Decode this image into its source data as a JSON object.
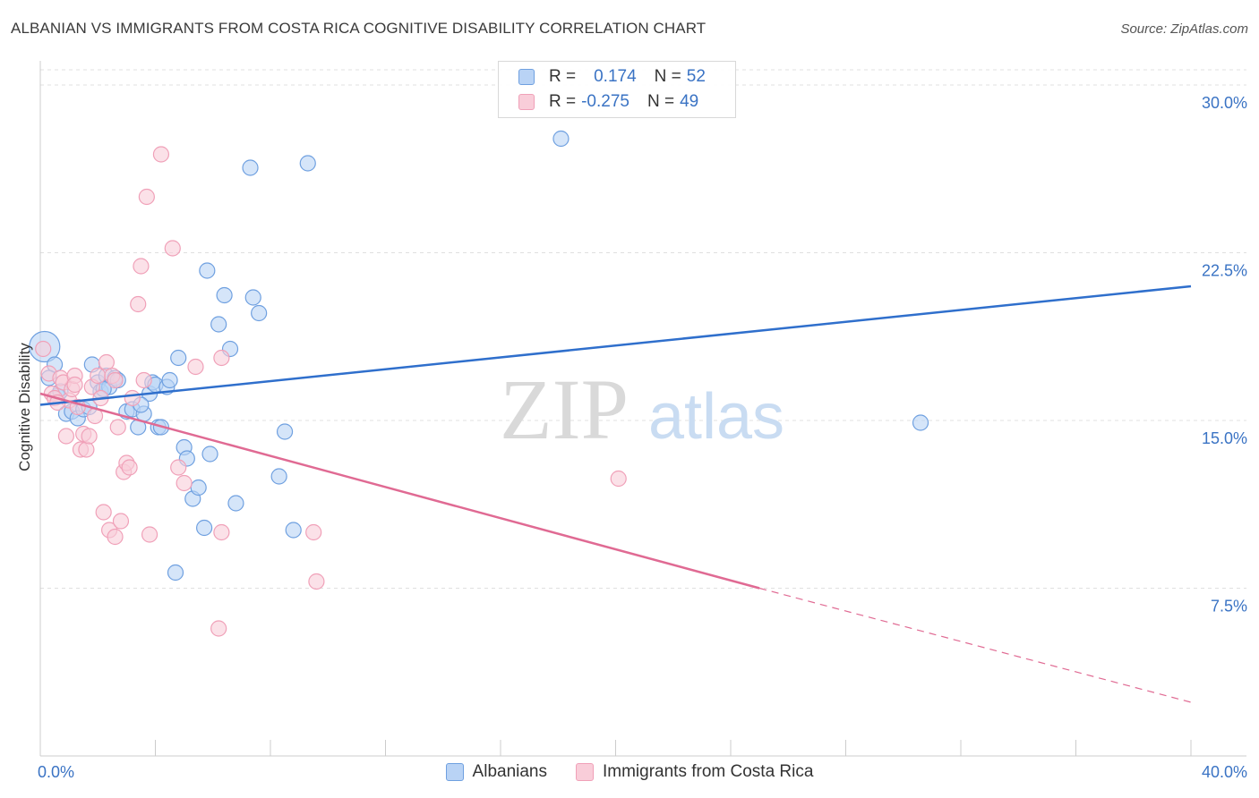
{
  "chart_data": {
    "type": "scatter",
    "title": "ALBANIAN VS IMMIGRANTS FROM COSTA RICA COGNITIVE DISABILITY CORRELATION CHART",
    "source": "Source: ZipAtlas.com",
    "ylabel": "Cognitive Disability",
    "xlim": [
      0,
      40
    ],
    "ylim": [
      0,
      31
    ],
    "x_tick_labels": [
      "0.0%",
      "40.0%"
    ],
    "y_ticks": [
      7.5,
      15.0,
      22.5,
      30.0
    ],
    "y_tick_labels": [
      "7.5%",
      "15.0%",
      "22.5%",
      "30.0%"
    ],
    "watermark": {
      "zip": "ZIP",
      "atlas": "atlas"
    },
    "legend": {
      "r_label": "R =",
      "n_label": "N =",
      "entries": [
        {
          "r": "0.174",
          "n": "52"
        },
        {
          "r": "-0.275",
          "n": "49"
        }
      ]
    },
    "series": [
      {
        "name": "Albanians",
        "color": "#6fa0e0",
        "fill": "#b9d3f5",
        "line_color": "#2f6fcc",
        "trend": {
          "x0": 0,
          "y0": 15.7,
          "x1": 40,
          "y1": 21.0
        },
        "points": [
          [
            0.15,
            18.3
          ],
          [
            0.5,
            17.5
          ],
          [
            0.6,
            16.1
          ],
          [
            0.7,
            16.3
          ],
          [
            0.9,
            15.3
          ],
          [
            1.1,
            15.4
          ],
          [
            1.3,
            15.1
          ],
          [
            1.5,
            15.5
          ],
          [
            1.8,
            17.5
          ],
          [
            2.0,
            16.7
          ],
          [
            2.1,
            16.3
          ],
          [
            2.3,
            17.0
          ],
          [
            2.4,
            16.5
          ],
          [
            2.6,
            16.9
          ],
          [
            2.7,
            16.8
          ],
          [
            3.0,
            15.4
          ],
          [
            3.2,
            15.5
          ],
          [
            3.4,
            14.7
          ],
          [
            3.6,
            15.3
          ],
          [
            3.8,
            16.2
          ],
          [
            3.9,
            16.7
          ],
          [
            4.0,
            16.6
          ],
          [
            4.1,
            14.7
          ],
          [
            4.2,
            14.7
          ],
          [
            4.4,
            16.5
          ],
          [
            4.5,
            16.8
          ],
          [
            4.8,
            17.8
          ],
          [
            5.0,
            13.8
          ],
          [
            5.1,
            13.3
          ],
          [
            5.3,
            11.5
          ],
          [
            5.5,
            12.0
          ],
          [
            5.7,
            10.2
          ],
          [
            5.8,
            21.7
          ],
          [
            5.9,
            13.5
          ],
          [
            6.2,
            19.3
          ],
          [
            6.4,
            20.6
          ],
          [
            6.6,
            18.2
          ],
          [
            6.8,
            11.3
          ],
          [
            7.3,
            26.3
          ],
          [
            7.4,
            20.5
          ],
          [
            7.6,
            19.8
          ],
          [
            8.3,
            12.5
          ],
          [
            8.5,
            14.5
          ],
          [
            8.8,
            10.1
          ],
          [
            9.3,
            26.5
          ],
          [
            4.7,
            8.2
          ],
          [
            18.1,
            27.6
          ],
          [
            30.6,
            14.9
          ],
          [
            1.7,
            15.6
          ],
          [
            3.5,
            15.7
          ],
          [
            0.3,
            16.9
          ],
          [
            2.2,
            16.4
          ]
        ]
      },
      {
        "name": "Immigrants from Costa Rica",
        "color": "#f0a0b8",
        "fill": "#f9cdd9",
        "line_color": "#e06a93",
        "trend": {
          "x0": 0,
          "y0": 16.2,
          "x1": 25,
          "y1": 7.5,
          "dash_x1": 40,
          "dash_y1": 2.4
        },
        "points": [
          [
            0.1,
            18.2
          ],
          [
            0.3,
            17.1
          ],
          [
            0.4,
            16.2
          ],
          [
            0.5,
            16.0
          ],
          [
            0.7,
            16.9
          ],
          [
            0.8,
            16.7
          ],
          [
            0.9,
            14.3
          ],
          [
            1.0,
            15.9
          ],
          [
            1.1,
            16.4
          ],
          [
            1.2,
            17.0
          ],
          [
            1.3,
            15.6
          ],
          [
            1.4,
            13.7
          ],
          [
            1.5,
            14.4
          ],
          [
            1.6,
            13.7
          ],
          [
            1.7,
            14.3
          ],
          [
            1.8,
            16.5
          ],
          [
            1.9,
            15.2
          ],
          [
            2.0,
            17.0
          ],
          [
            2.1,
            16.0
          ],
          [
            2.2,
            10.9
          ],
          [
            2.3,
            17.6
          ],
          [
            2.4,
            10.1
          ],
          [
            2.5,
            17.0
          ],
          [
            2.6,
            9.8
          ],
          [
            2.7,
            14.7
          ],
          [
            2.8,
            10.5
          ],
          [
            2.9,
            12.7
          ],
          [
            3.0,
            13.1
          ],
          [
            3.1,
            12.9
          ],
          [
            3.2,
            16.0
          ],
          [
            3.4,
            20.2
          ],
          [
            3.5,
            21.9
          ],
          [
            3.6,
            16.8
          ],
          [
            3.7,
            25.0
          ],
          [
            3.8,
            9.9
          ],
          [
            4.2,
            26.9
          ],
          [
            4.6,
            22.7
          ],
          [
            4.8,
            12.9
          ],
          [
            5.0,
            12.2
          ],
          [
            5.4,
            17.4
          ],
          [
            6.2,
            5.7
          ],
          [
            6.3,
            10.0
          ],
          [
            6.3,
            17.8
          ],
          [
            9.5,
            10.0
          ],
          [
            9.6,
            7.8
          ],
          [
            20.1,
            12.4
          ],
          [
            1.2,
            16.6
          ],
          [
            2.6,
            16.8
          ],
          [
            0.6,
            15.8
          ]
        ]
      }
    ]
  }
}
